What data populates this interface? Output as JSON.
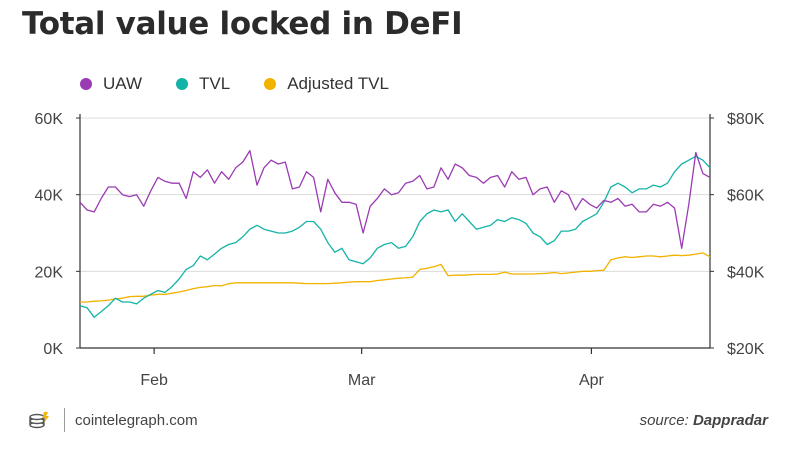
{
  "title": "Total value locked in DeFI",
  "legend": [
    {
      "label": "UAW",
      "color": "#9b3bb3"
    },
    {
      "label": "TVL",
      "color": "#14b3a7"
    },
    {
      "label": "Adjusted TVL",
      "color": "#f2b200"
    }
  ],
  "footer": {
    "brand": "cointelegraph.com",
    "source_prefix": "source:",
    "source_name": "Dappradar"
  },
  "chart_data": {
    "type": "line",
    "title": "Total value locked in DeFI",
    "x_ticks": [
      {
        "label": "Feb",
        "day": 10
      },
      {
        "label": "Mar",
        "day": 38
      },
      {
        "label": "Apr",
        "day": 69
      }
    ],
    "x_range": [
      0,
      85
    ],
    "y_left": {
      "ylim": [
        0,
        60000
      ],
      "ticks": [
        "0K",
        "20K",
        "40K",
        "60K"
      ],
      "tick_values": [
        0,
        20000,
        40000,
        60000
      ]
    },
    "y_right": {
      "ylim": [
        20,
        80
      ],
      "ticks": [
        "$20K",
        "$40K",
        "$60K",
        "$80K"
      ],
      "tick_values": [
        20,
        40,
        60,
        80
      ]
    },
    "series": [
      {
        "name": "UAW",
        "axis": "left",
        "color": "#9b3bb3",
        "values": [
          38000,
          36000,
          35500,
          39000,
          42000,
          42000,
          40000,
          39500,
          40000,
          37000,
          41000,
          44500,
          43500,
          43000,
          43000,
          39000,
          46000,
          44500,
          46500,
          43000,
          46000,
          44000,
          47000,
          48500,
          51500,
          42500,
          47000,
          49000,
          48000,
          48500,
          41500,
          42000,
          46000,
          44500,
          35500,
          44000,
          40500,
          38000,
          38000,
          37500,
          30000,
          37000,
          39000,
          41500,
          40000,
          40500,
          43000,
          43500,
          45000,
          41500,
          42000,
          47000,
          44000,
          48000,
          47000,
          45000,
          44500,
          43000,
          44500,
          45000,
          42000,
          46000,
          44000,
          44500,
          40000,
          41500,
          42000,
          38000,
          41000,
          40000,
          36000,
          39000,
          37500,
          36500,
          38500,
          38000,
          39000,
          37000,
          37500,
          35500,
          35500,
          37500,
          37000,
          38000,
          36500,
          26000,
          37500,
          51000,
          45500,
          44500
        ],
        "note": "UAW series has more points than x_range days; values are spread evenly across the x range"
      },
      {
        "name": "TVL",
        "axis": "right",
        "color": "#14b3a7",
        "values": [
          31,
          30.5,
          28,
          29.5,
          31,
          33,
          32,
          32,
          31.5,
          33,
          34,
          35,
          34.5,
          36,
          38,
          40.5,
          41.5,
          44,
          43,
          44.5,
          46,
          47,
          47.5,
          49,
          51,
          52,
          51,
          50.5,
          50,
          50,
          50.5,
          51.5,
          53,
          53,
          51,
          47.5,
          45,
          46,
          43,
          42.5,
          42,
          43.5,
          46,
          47,
          47.5,
          46,
          46.5,
          49,
          53,
          55,
          56,
          55.5,
          56,
          53,
          55,
          53,
          51,
          51.5,
          52,
          53.5,
          53,
          54,
          53.5,
          52.5,
          50,
          49,
          47,
          48,
          50.5,
          50.5,
          51,
          53,
          54,
          55,
          58,
          62,
          63,
          62,
          60.5,
          61.5,
          61.5,
          62.5,
          62,
          63,
          66,
          68,
          69,
          70,
          69,
          67
        ]
      },
      {
        "name": "Adjusted TVL",
        "axis": "right",
        "color": "#f2b200",
        "values": [
          32,
          32,
          32.2,
          32.3,
          32.5,
          32.8,
          33,
          33.4,
          33.5,
          33.5,
          33.8,
          34,
          34,
          34.3,
          34.6,
          35,
          35.5,
          35.8,
          36,
          36.3,
          36.2,
          36.8,
          37,
          37,
          37,
          37,
          37,
          37,
          37,
          37,
          37,
          36.9,
          36.8,
          36.8,
          36.8,
          36.8,
          36.9,
          37,
          37.2,
          37.3,
          37.3,
          37.3,
          37.6,
          37.8,
          38,
          38.2,
          38.3,
          38.5,
          40.5,
          40.8,
          41.2,
          41.8,
          38.9,
          39,
          39,
          39.1,
          39.2,
          39.2,
          39.2,
          39.3,
          39.8,
          39.3,
          39.3,
          39.3,
          39.3,
          39.4,
          39.5,
          39.7,
          39.4,
          39.6,
          39.8,
          40,
          40,
          40.2,
          40.3,
          43,
          43.5,
          43.8,
          43.6,
          43.8,
          44,
          44,
          43.8,
          44,
          44.2,
          44.1,
          44.2,
          44.5,
          44.8,
          43.8
        ]
      }
    ]
  }
}
